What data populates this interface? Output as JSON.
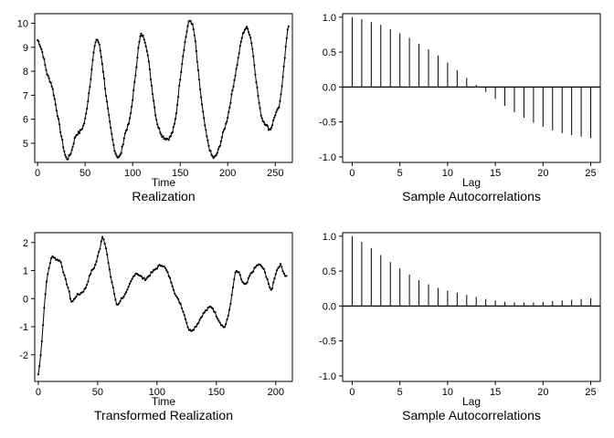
{
  "chart_data": [
    {
      "type": "line",
      "title": "Realization",
      "xlabel": "Time",
      "ylabel": "",
      "xlim": [
        -3,
        268
      ],
      "ylim": [
        4.2,
        10.4
      ],
      "xticks": [
        0,
        50,
        100,
        150,
        200,
        250
      ],
      "yticks": [
        5,
        6,
        7,
        8,
        9,
        10
      ],
      "knots": [
        [
          0,
          9.3
        ],
        [
          5,
          8.8
        ],
        [
          10,
          7.9
        ],
        [
          15,
          7.4
        ],
        [
          20,
          6.4
        ],
        [
          25,
          5.3
        ],
        [
          30,
          4.4
        ],
        [
          35,
          4.6
        ],
        [
          40,
          5.3
        ],
        [
          45,
          5.5
        ],
        [
          50,
          6.0
        ],
        [
          55,
          7.4
        ],
        [
          60,
          9.0
        ],
        [
          63,
          9.3
        ],
        [
          67,
          8.6
        ],
        [
          72,
          7.0
        ],
        [
          77,
          5.6
        ],
        [
          82,
          4.6
        ],
        [
          87,
          4.5
        ],
        [
          92,
          5.4
        ],
        [
          97,
          6.0
        ],
        [
          102,
          7.5
        ],
        [
          107,
          9.2
        ],
        [
          110,
          9.5
        ],
        [
          115,
          8.9
        ],
        [
          120,
          7.4
        ],
        [
          125,
          6.0
        ],
        [
          130,
          5.4
        ],
        [
          135,
          5.2
        ],
        [
          140,
          5.3
        ],
        [
          145,
          6.0
        ],
        [
          150,
          7.7
        ],
        [
          155,
          9.2
        ],
        [
          160,
          10.1
        ],
        [
          165,
          9.5
        ],
        [
          170,
          7.6
        ],
        [
          175,
          6.0
        ],
        [
          180,
          4.9
        ],
        [
          185,
          4.4
        ],
        [
          190,
          4.7
        ],
        [
          195,
          5.4
        ],
        [
          200,
          6.1
        ],
        [
          205,
          7.2
        ],
        [
          210,
          8.3
        ],
        [
          215,
          9.4
        ],
        [
          220,
          9.8
        ],
        [
          225,
          9.2
        ],
        [
          230,
          7.6
        ],
        [
          235,
          6.2
        ],
        [
          240,
          5.8
        ],
        [
          245,
          5.6
        ],
        [
          250,
          6.2
        ],
        [
          255,
          6.7
        ],
        [
          260,
          8.6
        ],
        [
          264,
          9.9
        ]
      ]
    },
    {
      "type": "bar",
      "title": "Sample Autocorrelations",
      "xlabel": "Lag",
      "ylabel": "",
      "xlim": [
        -1,
        26
      ],
      "ylim": [
        -1.08,
        1.05
      ],
      "xticks": [
        0,
        5,
        10,
        15,
        20,
        25
      ],
      "yticks": [
        -1.0,
        -0.5,
        0.0,
        0.5,
        1.0
      ],
      "ytick_labels": [
        "-1.0",
        "-0.5",
        "0.0",
        "0.5",
        "1.0"
      ],
      "x": [
        0,
        1,
        2,
        3,
        4,
        5,
        6,
        7,
        8,
        9,
        10,
        11,
        12,
        13,
        14,
        15,
        16,
        17,
        18,
        19,
        20,
        21,
        22,
        23,
        24,
        25
      ],
      "values": [
        1.0,
        0.97,
        0.93,
        0.89,
        0.83,
        0.77,
        0.7,
        0.62,
        0.54,
        0.45,
        0.35,
        0.24,
        0.13,
        0.03,
        -0.07,
        -0.17,
        -0.27,
        -0.36,
        -0.44,
        -0.51,
        -0.57,
        -0.62,
        -0.66,
        -0.69,
        -0.71,
        -0.73
      ]
    },
    {
      "type": "line",
      "title": "Transformed Realization",
      "xlabel": "Time",
      "ylabel": "",
      "xlim": [
        -3,
        214
      ],
      "ylim": [
        -2.95,
        2.35
      ],
      "xticks": [
        0,
        50,
        100,
        150,
        200
      ],
      "yticks": [
        -2,
        -1,
        0,
        1,
        2
      ],
      "knots": [
        [
          0,
          -2.7
        ],
        [
          3,
          -1.5
        ],
        [
          6,
          0.2
        ],
        [
          9,
          1.1
        ],
        [
          12,
          1.5
        ],
        [
          15,
          1.4
        ],
        [
          19,
          1.3
        ],
        [
          22,
          0.8
        ],
        [
          25,
          0.4
        ],
        [
          28,
          -0.1
        ],
        [
          32,
          0.1
        ],
        [
          36,
          0.2
        ],
        [
          40,
          0.4
        ],
        [
          44,
          0.9
        ],
        [
          48,
          1.2
        ],
        [
          52,
          1.8
        ],
        [
          54,
          2.2
        ],
        [
          57,
          1.8
        ],
        [
          60,
          1.0
        ],
        [
          63,
          0.4
        ],
        [
          66,
          -0.2
        ],
        [
          70,
          0.0
        ],
        [
          74,
          0.2
        ],
        [
          78,
          0.6
        ],
        [
          82,
          0.9
        ],
        [
          86,
          0.8
        ],
        [
          90,
          0.7
        ],
        [
          95,
          0.9
        ],
        [
          100,
          1.1
        ],
        [
          104,
          1.2
        ],
        [
          108,
          1.0
        ],
        [
          112,
          0.6
        ],
        [
          116,
          0.1
        ],
        [
          120,
          -0.2
        ],
        [
          124,
          -0.7
        ],
        [
          127,
          -1.1
        ],
        [
          130,
          -1.1
        ],
        [
          134,
          -0.9
        ],
        [
          138,
          -0.6
        ],
        [
          142,
          -0.4
        ],
        [
          146,
          -0.3
        ],
        [
          150,
          -0.6
        ],
        [
          154,
          -0.9
        ],
        [
          157,
          -1.0
        ],
        [
          160,
          -0.6
        ],
        [
          163,
          0.1
        ],
        [
          166,
          0.9
        ],
        [
          169,
          0.9
        ],
        [
          172,
          0.6
        ],
        [
          175,
          0.5
        ],
        [
          178,
          0.8
        ],
        [
          181,
          1.0
        ],
        [
          185,
          1.2
        ],
        [
          189,
          1.1
        ],
        [
          193,
          0.7
        ],
        [
          196,
          0.3
        ],
        [
          200,
          0.9
        ],
        [
          204,
          1.2
        ],
        [
          207,
          0.9
        ],
        [
          209,
          0.8
        ]
      ]
    },
    {
      "type": "bar",
      "title": "Sample Autocorrelations",
      "xlabel": "Lag",
      "ylabel": "",
      "xlim": [
        -1,
        26
      ],
      "ylim": [
        -1.08,
        1.05
      ],
      "xticks": [
        0,
        5,
        10,
        15,
        20,
        25
      ],
      "yticks": [
        -1.0,
        -0.5,
        0.0,
        0.5,
        1.0
      ],
      "ytick_labels": [
        "-1.0",
        "-0.5",
        "0.0",
        "0.5",
        "1.0"
      ],
      "x": [
        0,
        1,
        2,
        3,
        4,
        5,
        6,
        7,
        8,
        9,
        10,
        11,
        12,
        13,
        14,
        15,
        16,
        17,
        18,
        19,
        20,
        21,
        22,
        23,
        24,
        25
      ],
      "values": [
        1.0,
        0.92,
        0.83,
        0.73,
        0.63,
        0.54,
        0.45,
        0.37,
        0.31,
        0.26,
        0.22,
        0.19,
        0.16,
        0.13,
        0.1,
        0.08,
        0.06,
        0.05,
        0.05,
        0.05,
        0.06,
        0.07,
        0.08,
        0.09,
        0.1,
        0.11
      ]
    }
  ]
}
